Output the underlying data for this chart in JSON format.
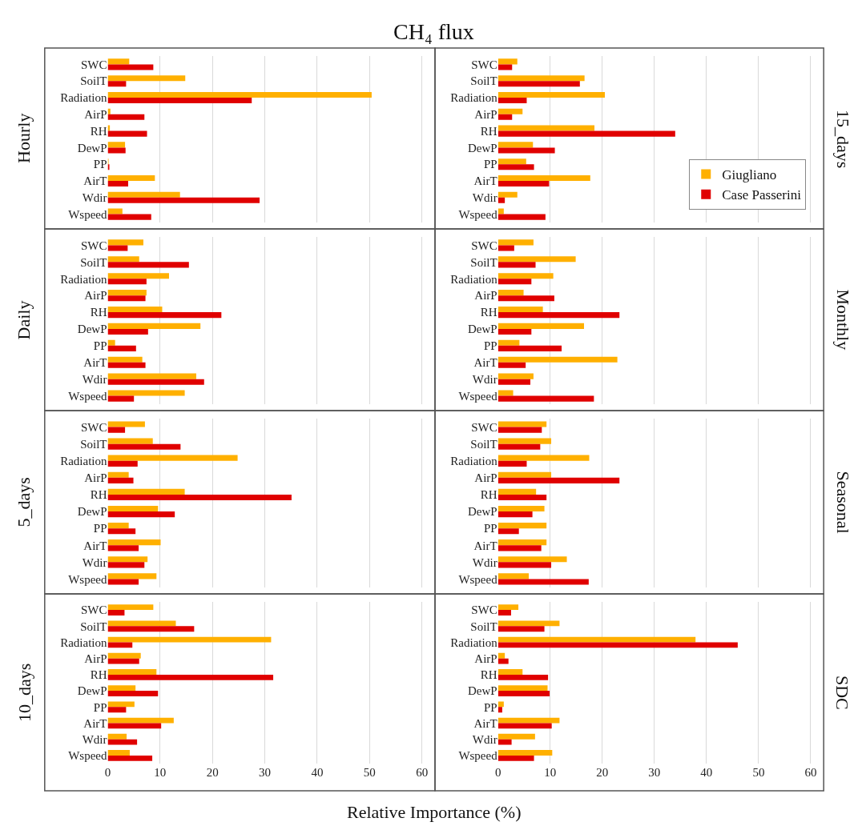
{
  "chart_data": [
    {
      "type": "bar",
      "orientation": "horizontal",
      "title": "CH₄ flux",
      "ylabel": "Hourly",
      "categories": [
        "SWC",
        "SoilT",
        "Radiation",
        "AirP",
        "RH",
        "DewP",
        "PP",
        "AirT",
        "Wdir",
        "Wspeed"
      ],
      "xlim": [
        0,
        62.5
      ],
      "xticks": [
        0,
        10,
        20,
        30,
        40,
        50,
        60
      ],
      "grid": "x",
      "tick_labels": "y",
      "series": [
        {
          "color": "#ffb000",
          "values": [
            4.1,
            14.8,
            50.4,
            0.5,
            0.4,
            3.3,
            0.1,
            9.0,
            13.8,
            2.8
          ]
        },
        {
          "color": "#e00000",
          "values": [
            8.7,
            3.5,
            27.5,
            7.0,
            7.5,
            3.4,
            0.3,
            3.9,
            29.0,
            8.3
          ]
        }
      ]
    },
    {
      "type": "bar",
      "orientation": "horizontal",
      "ylabel": "15_days",
      "categories": [
        "SWC",
        "SoilT",
        "Radiation",
        "AirP",
        "RH",
        "DewP",
        "PP",
        "AirT",
        "Wdir",
        "Wspeed"
      ],
      "xlim": [
        0,
        62.5
      ],
      "xticks": [
        0,
        10,
        20,
        30,
        40,
        50,
        60
      ],
      "grid": "x",
      "tick_labels": "y",
      "legend": "bottom right",
      "series": [
        {
          "name": "Giugliano",
          "color": "#ffb000",
          "values": [
            3.7,
            16.6,
            20.5,
            4.7,
            18.5,
            6.7,
            5.4,
            17.7,
            3.7,
            1.1
          ]
        },
        {
          "name": "Case Passerini",
          "color": "#e00000",
          "values": [
            2.7,
            15.7,
            5.5,
            2.7,
            34.0,
            10.9,
            6.9,
            9.8,
            1.3,
            9.1
          ]
        }
      ]
    },
    {
      "type": "bar",
      "orientation": "horizontal",
      "ylabel": "Daily",
      "categories": [
        "SWC",
        "SoilT",
        "Radiation",
        "AirP",
        "RH",
        "DewP",
        "PP",
        "AirT",
        "Wdir",
        "Wspeed"
      ],
      "xlim": [
        0,
        62.5
      ],
      "xticks": [
        0,
        10,
        20,
        30,
        40,
        50,
        60
      ],
      "grid": "x",
      "tick_labels": "y",
      "series": [
        {
          "color": "#ffb000",
          "values": [
            6.8,
            6.0,
            11.7,
            7.4,
            10.4,
            17.7,
            1.4,
            6.6,
            16.9,
            14.7
          ]
        },
        {
          "color": "#e00000",
          "values": [
            3.8,
            15.5,
            7.4,
            7.2,
            21.7,
            7.7,
            5.4,
            7.2,
            18.4,
            5.0
          ]
        }
      ]
    },
    {
      "type": "bar",
      "orientation": "horizontal",
      "ylabel": "Monthly",
      "categories": [
        "SWC",
        "SoilT",
        "Radiation",
        "AirP",
        "RH",
        "DewP",
        "PP",
        "AirT",
        "Wdir",
        "Wspeed"
      ],
      "xlim": [
        0,
        62.5
      ],
      "xticks": [
        0,
        10,
        20,
        30,
        40,
        50,
        60
      ],
      "grid": "x",
      "tick_labels": "y",
      "series": [
        {
          "color": "#ffb000",
          "values": [
            6.8,
            14.9,
            10.6,
            4.9,
            8.6,
            16.5,
            4.1,
            22.9,
            6.8,
            2.9
          ]
        },
        {
          "color": "#e00000",
          "values": [
            3.1,
            7.2,
            6.4,
            10.8,
            23.3,
            6.4,
            12.2,
            5.3,
            6.2,
            18.4
          ]
        }
      ]
    },
    {
      "type": "bar",
      "orientation": "horizontal",
      "ylabel": "5_days",
      "categories": [
        "SWC",
        "SoilT",
        "Radiation",
        "AirP",
        "RH",
        "DewP",
        "PP",
        "AirT",
        "Wdir",
        "Wspeed"
      ],
      "xlim": [
        0,
        62.5
      ],
      "xticks": [
        0,
        10,
        20,
        30,
        40,
        50,
        60
      ],
      "grid": "x",
      "tick_labels": "y",
      "series": [
        {
          "color": "#ffb000",
          "values": [
            7.1,
            8.6,
            24.8,
            4.0,
            14.7,
            9.6,
            4.0,
            10.1,
            7.6,
            9.3
          ]
        },
        {
          "color": "#e00000",
          "values": [
            3.3,
            13.9,
            5.7,
            4.9,
            35.1,
            12.8,
            5.3,
            5.9,
            7.0,
            5.9
          ]
        }
      ]
    },
    {
      "type": "bar",
      "orientation": "horizontal",
      "ylabel": "Seasonal",
      "categories": [
        "SWC",
        "SoilT",
        "Radiation",
        "AirP",
        "RH",
        "DewP",
        "PP",
        "AirT",
        "Wdir",
        "Wspeed"
      ],
      "xlim": [
        0,
        62.5
      ],
      "xticks": [
        0,
        10,
        20,
        30,
        40,
        50,
        60
      ],
      "grid": "x",
      "tick_labels": "y",
      "series": [
        {
          "color": "#ffb000",
          "values": [
            9.3,
            10.2,
            17.5,
            10.2,
            7.3,
            8.9,
            9.3,
            9.3,
            13.2,
            5.9
          ]
        },
        {
          "color": "#e00000",
          "values": [
            8.4,
            8.1,
            5.5,
            23.3,
            9.3,
            6.6,
            4.0,
            8.3,
            10.2,
            17.4
          ]
        }
      ]
    },
    {
      "type": "bar",
      "orientation": "horizontal",
      "ylabel": "10_days",
      "xlabel": "Relative Importance (%)",
      "categories": [
        "SWC",
        "SoilT",
        "Radiation",
        "AirP",
        "RH",
        "DewP",
        "PP",
        "AirT",
        "Wdir",
        "Wspeed"
      ],
      "xlim": [
        0,
        62.5
      ],
      "xticks": [
        0,
        10,
        20,
        30,
        40,
        50,
        60
      ],
      "grid": "x",
      "series": [
        {
          "color": "#ffb000",
          "values": [
            8.7,
            13.0,
            31.2,
            6.3,
            9.3,
            5.3,
            5.1,
            12.6,
            3.6,
            4.2
          ]
        },
        {
          "color": "#e00000",
          "values": [
            3.2,
            16.5,
            4.7,
            6.0,
            31.6,
            9.6,
            3.5,
            10.2,
            5.6,
            8.5
          ]
        }
      ]
    },
    {
      "type": "bar",
      "orientation": "horizontal",
      "ylabel": "SDC",
      "categories": [
        "SWC",
        "SoilT",
        "Radiation",
        "AirP",
        "RH",
        "DewP",
        "PP",
        "AirT",
        "Wdir",
        "Wspeed"
      ],
      "xlim": [
        0,
        62.5
      ],
      "xticks": [
        0,
        10,
        20,
        30,
        40,
        50,
        60
      ],
      "grid": "x",
      "series": [
        {
          "color": "#ffb000",
          "values": [
            3.9,
            11.8,
            37.9,
            1.3,
            4.7,
            9.5,
            1.1,
            11.8,
            7.1,
            10.4
          ]
        },
        {
          "color": "#e00000",
          "values": [
            2.5,
            8.9,
            46.0,
            2.0,
            9.6,
            9.9,
            0.8,
            10.3,
            2.6,
            6.9
          ]
        }
      ]
    }
  ]
}
